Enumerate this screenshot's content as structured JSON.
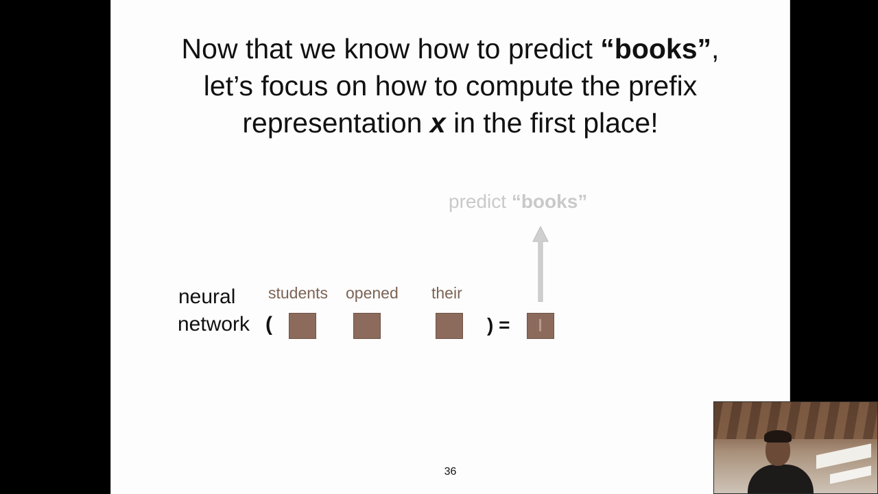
{
  "slide": {
    "title": {
      "line1_pre": "Now that we know how to predict ",
      "line1_bold": "“books”",
      "line1_post": ",",
      "line2": "let’s focus on how to compute the prefix",
      "line3_pre": "representation ",
      "line3_var": "x",
      "line3_post": " in the first place!"
    },
    "predict": {
      "prefix": "predict ",
      "word": "“books”"
    },
    "equation": {
      "line1": "neural",
      "line2": "network",
      "open_paren": "(",
      "close_equals": ") =",
      "words": [
        "students",
        "opened",
        "their"
      ]
    },
    "page_number": "36"
  },
  "colors": {
    "vector_fill": "#8c6b5c",
    "word_text": "#7b6355",
    "faded_text": "#c9c9c9",
    "background": "#000000"
  }
}
